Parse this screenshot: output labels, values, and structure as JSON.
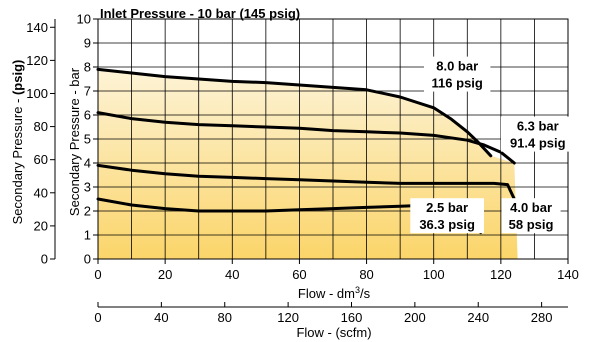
{
  "chart_data": {
    "type": "line",
    "title": "Inlet Pressure - 10 bar (145 psig)",
    "xlabel": "Flow - dm3/s",
    "xlabel_main": "Flow - dm",
    "xlabel_sup": "3",
    "xlabel_tail": "/s",
    "x2label": "Flow - (scfm)",
    "ylabel_bar": "Secondary Pressure - bar",
    "ylabel_psig_prefix": "Secondary Pressure - ",
    "ylabel_psig_bold": "(psig)",
    "xlim": [
      0,
      140
    ],
    "ylim": [
      0,
      10
    ],
    "x_ticks": [
      "0",
      "20",
      "40",
      "60",
      "80",
      "100",
      "120",
      "140"
    ],
    "y_ticks_bar": [
      "0",
      "1",
      "2",
      "3",
      "4",
      "5",
      "6",
      "7",
      "8",
      "9",
      "10"
    ],
    "y_ticks_psig": [
      "0",
      "20",
      "40",
      "60",
      "80",
      "100",
      "120",
      "140"
    ],
    "x2_ticks": [
      "0",
      "40",
      "80",
      "120",
      "160",
      "200",
      "240",
      "280"
    ],
    "grid": true,
    "series": [
      {
        "name": "8.0 bar",
        "label_line1": "8.0 bar",
        "label_line2": "116 psig",
        "x": [
          0,
          10,
          20,
          30,
          40,
          50,
          60,
          70,
          80,
          90,
          100,
          105,
          110,
          113,
          117
        ],
        "y": [
          7.9,
          7.75,
          7.6,
          7.5,
          7.4,
          7.35,
          7.25,
          7.15,
          7.05,
          6.75,
          6.3,
          5.85,
          5.3,
          4.9,
          4.3
        ]
      },
      {
        "name": "6.3 bar",
        "label_line1": "6.3 bar",
        "label_line2": "91.4 psig",
        "x": [
          0,
          10,
          20,
          30,
          40,
          50,
          60,
          70,
          80,
          90,
          100,
          110,
          115,
          120,
          124
        ],
        "y": [
          6.1,
          5.85,
          5.7,
          5.6,
          5.55,
          5.5,
          5.45,
          5.35,
          5.3,
          5.25,
          5.15,
          4.95,
          4.75,
          4.45,
          4.0
        ]
      },
      {
        "name": "4.0 bar",
        "label_line1": "4.0 bar",
        "label_line2": "58 psig",
        "x": [
          0,
          10,
          20,
          30,
          40,
          50,
          60,
          70,
          80,
          90,
          100,
          110,
          118,
          122,
          124,
          125
        ],
        "y": [
          3.9,
          3.7,
          3.55,
          3.45,
          3.4,
          3.35,
          3.3,
          3.25,
          3.2,
          3.15,
          3.15,
          3.15,
          3.15,
          3.1,
          2.5,
          1.8
        ]
      },
      {
        "name": "2.5 bar",
        "label_line1": "2.5 bar",
        "label_line2": "36.3 psig",
        "x": [
          0,
          10,
          20,
          30,
          40,
          50,
          60,
          70,
          80,
          90,
          100,
          106,
          110,
          113,
          114
        ],
        "y": [
          2.5,
          2.25,
          2.1,
          2.0,
          2.0,
          2.0,
          2.05,
          2.1,
          2.15,
          2.2,
          2.25,
          2.2,
          1.95,
          1.4,
          1.1
        ]
      }
    ],
    "colors": {
      "fill_top": "#fdf3d6",
      "fill_bottom": "#fbd56a",
      "line": "#000000",
      "grid": "#000000"
    }
  }
}
